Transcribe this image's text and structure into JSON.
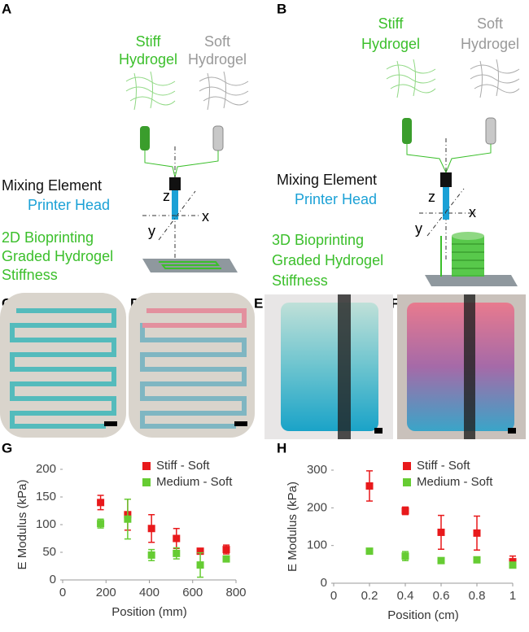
{
  "panels": {
    "a": "A",
    "b": "B",
    "c": "C",
    "d": "D",
    "e": "E",
    "f": "F",
    "g": "G",
    "h": "H"
  },
  "diagram_a": {
    "stiff": [
      "Stiff",
      "Hydrogel"
    ],
    "soft": [
      "Soft",
      "Hydrogel"
    ],
    "mixing": "Mixing Element",
    "head": "Printer Head",
    "process": [
      "2D Bioprinting",
      "Graded Hydrogel",
      "Stiffness"
    ],
    "axes": [
      "z",
      "x",
      "y"
    ]
  },
  "diagram_b": {
    "stiff": [
      "Stiff",
      "Hydrogel"
    ],
    "soft": [
      "Soft",
      "Hydrogel"
    ],
    "mixing": "Mixing Element",
    "head": "Printer Head",
    "process": [
      "3D Bioprinting",
      "Graded Hydrogel",
      "Stiffness"
    ],
    "axes": [
      "z",
      "x",
      "y"
    ]
  },
  "chart_data": [
    {
      "type": "scatter",
      "x_label": "Position (mm)",
      "y_label": "E Modulus (kPa)",
      "x": [
        175,
        300,
        410,
        525,
        635,
        755
      ],
      "xlim": [
        0,
        800
      ],
      "xticks": [
        0,
        200,
        400,
        600,
        800
      ],
      "ylim": [
        0,
        200
      ],
      "yticks": [
        0,
        50,
        100,
        150,
        200
      ],
      "series": [
        {
          "name": "Stiff - Soft",
          "color": "#e8191b",
          "values": [
            140,
            118,
            93,
            75,
            52,
            55
          ],
          "errors": [
            13,
            28,
            25,
            18,
            2,
            8
          ]
        },
        {
          "name": "Medium - Soft",
          "color": "#66cc33",
          "values": [
            102,
            110,
            45,
            48,
            27,
            38
          ],
          "errors": [
            8,
            36,
            10,
            10,
            22,
            3
          ]
        }
      ]
    },
    {
      "type": "scatter",
      "x_label": "Position (cm)",
      "y_label": "E Modulus (kPa)",
      "x": [
        0.2,
        0.4,
        0.6,
        0.8,
        1
      ],
      "xlim": [
        0,
        1
      ],
      "xticks": [
        0,
        0.2,
        0.4,
        0.6,
        0.8,
        1
      ],
      "ylim": [
        0,
        300
      ],
      "yticks": [
        0,
        100,
        200,
        300
      ],
      "series": [
        {
          "name": "Stiff - Soft",
          "color": "#e8191b",
          "values": [
            258,
            192,
            135,
            133,
            57
          ],
          "errors": [
            40,
            10,
            45,
            45,
            15
          ]
        },
        {
          "name": "Medium - Soft",
          "color": "#66cc33",
          "values": [
            85,
            72,
            60,
            62,
            48
          ],
          "errors": [
            3,
            12,
            6,
            3,
            5
          ]
        }
      ]
    }
  ]
}
